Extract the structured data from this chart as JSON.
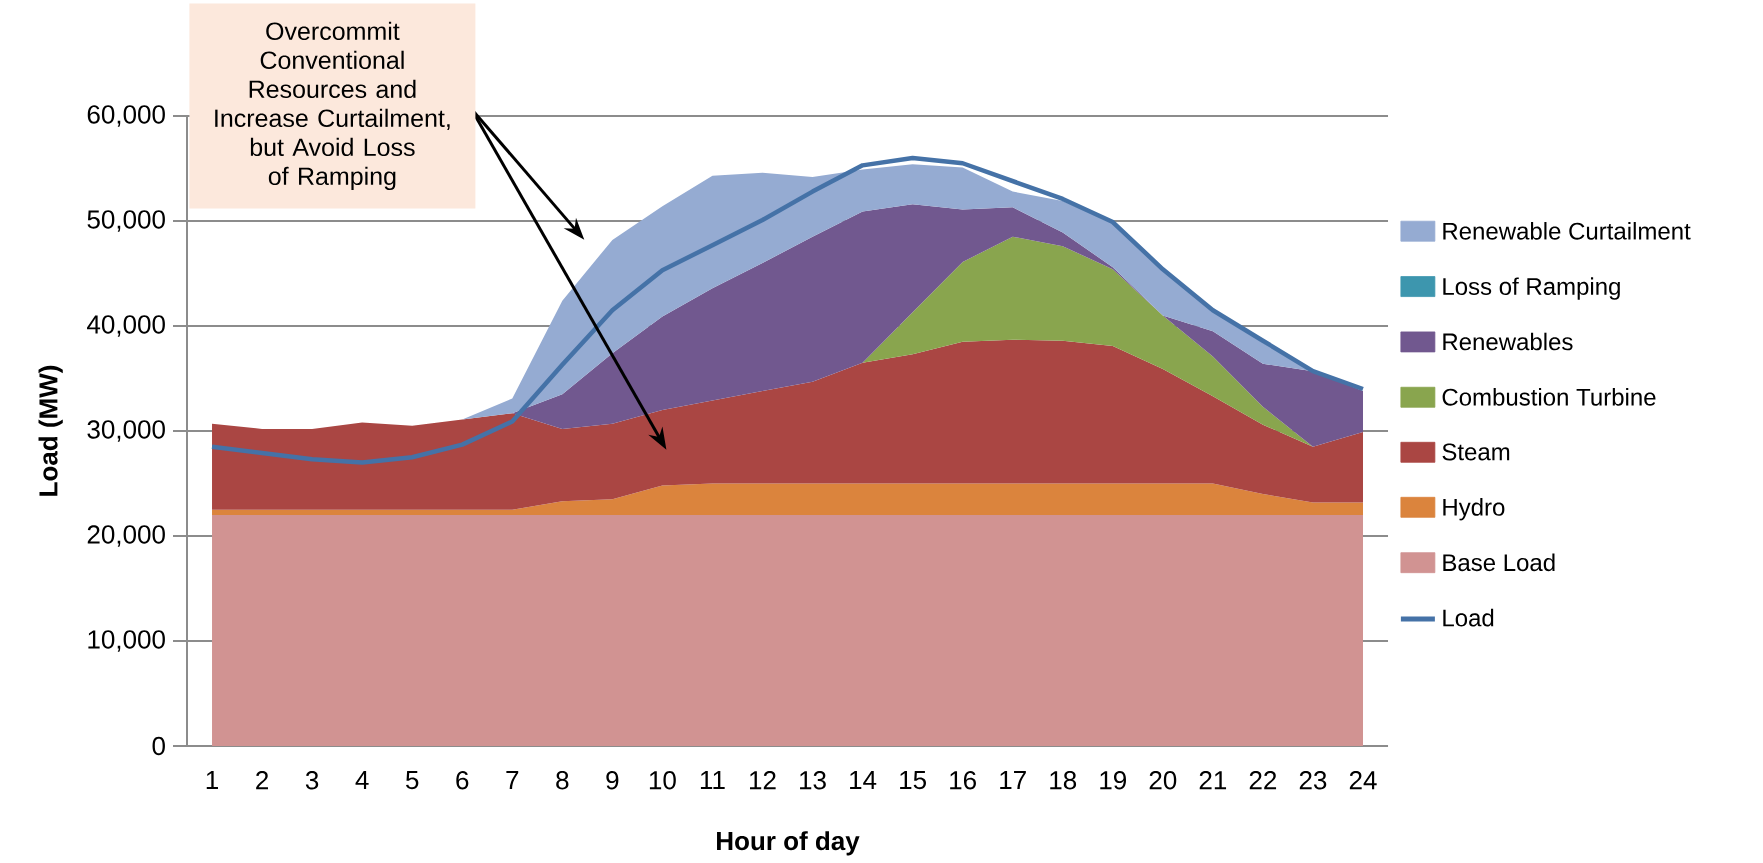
{
  "chart_data": {
    "type": "area",
    "stacked": true,
    "xlabel": "Hour of day",
    "ylabel": "Load (MW)",
    "annotations": [
      "Overcommit Conventional Resources and Increase Curtailment, but Avoid Loss of Ramping"
    ],
    "categories": [
      "1",
      "2",
      "3",
      "4",
      "5",
      "6",
      "7",
      "8",
      "9",
      "10",
      "11",
      "12",
      "13",
      "14",
      "15",
      "16",
      "17",
      "18",
      "19",
      "20",
      "21",
      "22",
      "23",
      "24"
    ],
    "ylim": [
      0,
      60000
    ],
    "yticks": [
      {
        "value": 0,
        "label": "0"
      },
      {
        "value": 10000,
        "label": "10,000"
      },
      {
        "value": 20000,
        "label": "20,000"
      },
      {
        "value": 30000,
        "label": "30,000"
      },
      {
        "value": 40000,
        "label": "40,000"
      },
      {
        "value": 50000,
        "label": "50,000"
      },
      {
        "value": 60000,
        "label": "60,000"
      }
    ],
    "grid": "y",
    "legend": "right",
    "series": [
      {
        "name": "Base Load",
        "color": "#d19392",
        "values": [
          22000,
          22000,
          22000,
          22000,
          22000,
          22000,
          22000,
          22000,
          22000,
          22000,
          22000,
          22000,
          22000,
          22000,
          22000,
          22000,
          22000,
          22000,
          22000,
          22000,
          22000,
          22000,
          22000,
          22000
        ]
      },
      {
        "name": "Hydro",
        "color": "#db843d",
        "values": [
          500,
          500,
          500,
          500,
          500,
          500,
          500,
          1300,
          1500,
          2800,
          3000,
          3000,
          3000,
          3000,
          3000,
          3000,
          3000,
          3000,
          3000,
          3000,
          3000,
          2000,
          1200,
          1200
        ]
      },
      {
        "name": "Steam",
        "color": "#aa4643",
        "values": [
          8200,
          7700,
          7700,
          8300,
          8000,
          8600,
          9200,
          6900,
          7200,
          7200,
          7900,
          8800,
          9700,
          11500,
          12300,
          13500,
          13700,
          13600,
          13100,
          10900,
          8300,
          6600,
          5300,
          6700
        ]
      },
      {
        "name": "Combustion Turbine",
        "color": "#89a54e",
        "values": [
          null,
          null,
          null,
          null,
          null,
          null,
          null,
          null,
          null,
          null,
          null,
          null,
          null,
          0,
          4000,
          7600,
          9800,
          9000,
          7300,
          5100,
          3800,
          1700,
          0,
          null
        ]
      },
      {
        "name": "Renewables",
        "color": "#71588f",
        "values": [
          null,
          null,
          null,
          null,
          null,
          null,
          0,
          3300,
          6700,
          8900,
          10700,
          12200,
          13800,
          14400,
          10300,
          5000,
          2800,
          1300,
          200,
          0,
          2400,
          4100,
          7200,
          3900
        ]
      },
      {
        "name": "Loss of Ramping",
        "color": "#3d96ae",
        "values": [
          null,
          null,
          null,
          null,
          null,
          null,
          null,
          null,
          null,
          null,
          null,
          null,
          null,
          null,
          null,
          null,
          null,
          null,
          null,
          null,
          null,
          null,
          null,
          null
        ]
      },
      {
        "name": "Renewable Curtailment",
        "color": "#95abd2",
        "values": [
          null,
          null,
          null,
          null,
          null,
          0,
          1400,
          8900,
          10800,
          10500,
          10700,
          8600,
          5700,
          4000,
          3800,
          4000,
          1500,
          3000,
          4200,
          4300,
          2000,
          2000,
          0,
          null
        ]
      },
      {
        "name": "Load",
        "type": "line",
        "color": "#4572a7",
        "values": [
          28500,
          27900,
          27300,
          27000,
          27500,
          28700,
          30900,
          36300,
          41500,
          45300,
          47700,
          50100,
          52800,
          55300,
          56000,
          55500,
          53800,
          52100,
          49900,
          45400,
          41500,
          38600,
          35700,
          34000
        ]
      }
    ]
  }
}
